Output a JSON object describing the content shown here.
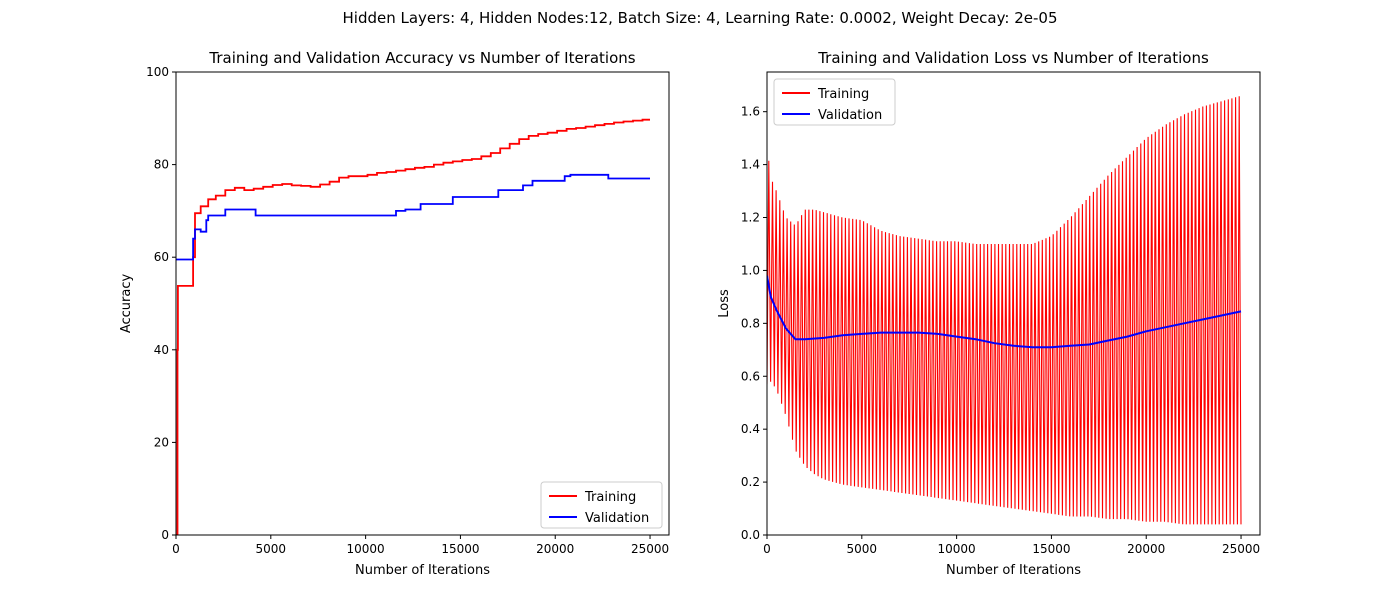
{
  "suptitle": "Hidden Layers: 4, Hidden Nodes:12, Batch Size: 4, Learning Rate: 0.0002, Weight Decay: 2e-05",
  "chart_data": [
    {
      "type": "line",
      "title": "Training and Validation Accuracy vs Number of Iterations",
      "xlabel": "Number of Iterations",
      "ylabel": "Accuracy",
      "xlim": [
        0,
        26000
      ],
      "ylim": [
        0,
        100
      ],
      "xticks": [
        0,
        5000,
        10000,
        15000,
        20000,
        25000
      ],
      "yticks": [
        0,
        20,
        40,
        60,
        80,
        100
      ],
      "grid": false,
      "legend": "lower right",
      "series": [
        {
          "name": "Training",
          "color": "#ff0000",
          "style": "step",
          "x": [
            0,
            80,
            100,
            850,
            900,
            1000,
            1300,
            1700,
            2100,
            2600,
            3100,
            3600,
            4100,
            4600,
            5100,
            5600,
            6100,
            6600,
            7100,
            7600,
            8100,
            8600,
            9100,
            9600,
            10100,
            10600,
            11100,
            11600,
            12100,
            12600,
            13100,
            13600,
            14100,
            14600,
            15100,
            15600,
            16100,
            16600,
            17100,
            17600,
            18100,
            18600,
            19100,
            19600,
            20100,
            20600,
            21100,
            21600,
            22100,
            22600,
            23100,
            23600,
            24100,
            24600,
            25000
          ],
          "y": [
            0,
            40,
            53.8,
            53.8,
            60,
            69.5,
            71,
            72.5,
            73.3,
            74.5,
            75,
            74.5,
            74.8,
            75.2,
            75.6,
            75.8,
            75.5,
            75.4,
            75.2,
            75.7,
            76.3,
            77.2,
            77.5,
            77.5,
            77.8,
            78.2,
            78.4,
            78.7,
            79,
            79.3,
            79.5,
            80,
            80.4,
            80.7,
            81,
            81.2,
            81.8,
            82.5,
            83.5,
            84.5,
            85.5,
            86.2,
            86.6,
            86.9,
            87.3,
            87.7,
            87.9,
            88.2,
            88.5,
            88.8,
            89.1,
            89.3,
            89.5,
            89.7,
            89.7
          ]
        },
        {
          "name": "Validation",
          "color": "#0000ff",
          "style": "step",
          "x": [
            0,
            850,
            900,
            1000,
            1300,
            1600,
            1700,
            2600,
            4200,
            11100,
            11600,
            12100,
            12900,
            14600,
            17000,
            18300,
            18800,
            20500,
            20800,
            22800,
            25000
          ],
          "y": [
            59.5,
            59.5,
            64,
            66,
            65.5,
            68,
            69,
            70.3,
            69,
            69,
            70,
            70.3,
            71.5,
            73,
            74.5,
            75.5,
            76.5,
            77.5,
            77.8,
            77,
            77
          ]
        }
      ]
    },
    {
      "type": "line",
      "title": "Training and Validation Loss vs Number of Iterations",
      "xlabel": "Number of Iterations",
      "ylabel": "Loss",
      "xlim": [
        0,
        26000
      ],
      "ylim": [
        0,
        1.75
      ],
      "xticks": [
        0,
        5000,
        10000,
        15000,
        20000,
        25000
      ],
      "yticks": [
        0.0,
        0.2,
        0.4,
        0.6,
        0.8,
        1.0,
        1.2,
        1.4,
        1.6
      ],
      "grid": false,
      "legend": "upper left",
      "series": [
        {
          "name": "Training",
          "color": "#ff0000",
          "style": "oscillating band (lower/upper envelope)",
          "x": [
            0,
            100,
            200,
            500,
            1000,
            1500,
            2000,
            2500,
            3000,
            4000,
            5000,
            6000,
            7000,
            8000,
            9000,
            10000,
            11000,
            12000,
            13000,
            14000,
            15000,
            16000,
            17000,
            18000,
            19000,
            20000,
            21000,
            22000,
            23000,
            24000,
            25000
          ],
          "lower": [
            0.57,
            0.57,
            0.58,
            0.55,
            0.45,
            0.32,
            0.26,
            0.23,
            0.21,
            0.19,
            0.18,
            0.17,
            0.16,
            0.15,
            0.14,
            0.13,
            0.12,
            0.11,
            0.1,
            0.09,
            0.08,
            0.07,
            0.07,
            0.06,
            0.06,
            0.05,
            0.05,
            0.04,
            0.04,
            0.04,
            0.04
          ],
          "upper": [
            1.53,
            1.41,
            1.35,
            1.3,
            1.2,
            1.17,
            1.23,
            1.23,
            1.22,
            1.2,
            1.19,
            1.15,
            1.13,
            1.12,
            1.11,
            1.11,
            1.1,
            1.1,
            1.1,
            1.1,
            1.13,
            1.2,
            1.28,
            1.36,
            1.43,
            1.5,
            1.55,
            1.59,
            1.62,
            1.64,
            1.66
          ]
        },
        {
          "name": "Validation",
          "color": "#0000ff",
          "style": "line",
          "x": [
            0,
            200,
            500,
            1000,
            1500,
            2000,
            3000,
            4000,
            5000,
            6000,
            7000,
            8000,
            9000,
            10000,
            11000,
            12000,
            13000,
            14000,
            15000,
            16000,
            17000,
            18000,
            19000,
            20000,
            21000,
            22000,
            23000,
            24000,
            25000
          ],
          "y": [
            0.98,
            0.9,
            0.85,
            0.78,
            0.74,
            0.74,
            0.745,
            0.755,
            0.76,
            0.765,
            0.765,
            0.765,
            0.76,
            0.75,
            0.74,
            0.725,
            0.715,
            0.71,
            0.71,
            0.715,
            0.72,
            0.735,
            0.75,
            0.77,
            0.785,
            0.8,
            0.815,
            0.83,
            0.845
          ]
        }
      ]
    }
  ]
}
